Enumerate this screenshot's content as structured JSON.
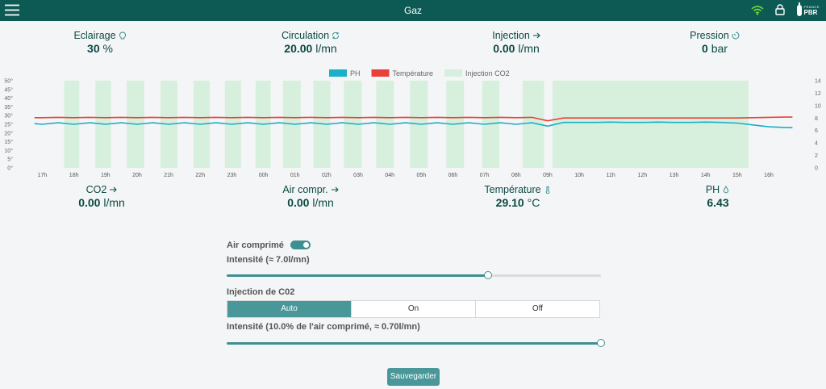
{
  "header": {
    "title": "Gaz",
    "brand": [
      "FRANCE",
      "PBR"
    ]
  },
  "metrics_top": [
    {
      "label": "Eclairage",
      "value": "30",
      "unit": "%"
    },
    {
      "label": "Circulation",
      "value": "20.00",
      "unit": "l/mn"
    },
    {
      "label": "Injection",
      "value": "0.00",
      "unit": "l/mn"
    },
    {
      "label": "Pression",
      "value": "0",
      "unit": "bar"
    }
  ],
  "chart_data": {
    "type": "line",
    "x": [
      -0.25,
      0,
      0.5,
      1,
      1.5,
      2,
      2.5,
      3,
      3.5,
      4,
      4.5,
      5,
      5.5,
      6,
      6.5,
      7,
      7.5,
      8,
      8.5,
      9,
      9.5,
      10,
      10.5,
      11,
      11.5,
      12,
      12.5,
      13,
      13.5,
      14,
      14.5,
      15,
      15.5,
      16,
      16.5,
      17,
      17.5,
      18,
      18.5,
      19,
      19.5,
      20,
      20.5,
      21,
      21.5,
      22,
      22.5,
      23,
      23.5,
      23.75
    ],
    "xlim": [
      -0.6,
      24.2
    ],
    "xticks": [
      {
        "value": 0,
        "label": "17h"
      },
      {
        "value": 1,
        "label": "18h"
      },
      {
        "value": 2,
        "label": "19h"
      },
      {
        "value": 3,
        "label": "20h"
      },
      {
        "value": 4,
        "label": "21h"
      },
      {
        "value": 5,
        "label": "22h"
      },
      {
        "value": 6,
        "label": "23h"
      },
      {
        "value": 7,
        "label": "00h"
      },
      {
        "value": 8,
        "label": "01h"
      },
      {
        "value": 9,
        "label": "02h"
      },
      {
        "value": 10,
        "label": "03h"
      },
      {
        "value": 11,
        "label": "04h"
      },
      {
        "value": 12,
        "label": "05h"
      },
      {
        "value": 13,
        "label": "06h"
      },
      {
        "value": 14,
        "label": "07h"
      },
      {
        "value": 15,
        "label": "08h"
      },
      {
        "value": 16,
        "label": "09h"
      },
      {
        "value": 17,
        "label": "10h"
      },
      {
        "value": 18,
        "label": "11h"
      },
      {
        "value": 19,
        "label": "12h"
      },
      {
        "value": 20,
        "label": "13h"
      },
      {
        "value": 21,
        "label": "14h"
      },
      {
        "value": 22,
        "label": "15h"
      },
      {
        "value": 23,
        "label": "16h"
      }
    ],
    "ylim": [
      0,
      50
    ],
    "yticks": [
      {
        "value": 0,
        "label": "0°"
      },
      {
        "value": 5,
        "label": "5°"
      },
      {
        "value": 10,
        "label": "10°"
      },
      {
        "value": 15,
        "label": "15°"
      },
      {
        "value": 20,
        "label": "20°"
      },
      {
        "value": 25,
        "label": "25°"
      },
      {
        "value": 30,
        "label": "30°"
      },
      {
        "value": 35,
        "label": "35°"
      },
      {
        "value": 40,
        "label": "40°"
      },
      {
        "value": 45,
        "label": "45°"
      },
      {
        "value": 50,
        "label": "50°"
      }
    ],
    "y2lim": [
      0,
      14
    ],
    "y2ticks": [
      0,
      2,
      4,
      6,
      8,
      10,
      12,
      14
    ],
    "grid": false,
    "legend": "top",
    "series": [
      {
        "name": "PH",
        "color": "#1ab0c8",
        "axis": "y2",
        "values": [
          7.1,
          7.0,
          7.25,
          7.0,
          7.25,
          7.0,
          7.25,
          7.0,
          7.25,
          7.0,
          7.25,
          7.0,
          7.25,
          7.0,
          7.25,
          7.0,
          7.25,
          7.0,
          7.25,
          7.0,
          7.25,
          7.0,
          7.25,
          7.0,
          7.25,
          7.0,
          7.25,
          7.0,
          7.25,
          7.0,
          7.25,
          7.0,
          7.25,
          6.7,
          7.3,
          7.3,
          7.3,
          7.35,
          7.3,
          7.3,
          7.35,
          7.3,
          7.3,
          7.35,
          7.3,
          7.2,
          6.9,
          6.6,
          6.5,
          6.45
        ]
      },
      {
        "name": "Température",
        "color": "#e8413a",
        "values": [
          28.8,
          28.8,
          29.0,
          28.8,
          29.0,
          28.8,
          29.0,
          28.8,
          29.0,
          28.8,
          29.0,
          28.8,
          29.0,
          28.8,
          29.0,
          28.8,
          29.0,
          28.8,
          29.0,
          28.8,
          29.0,
          28.8,
          29.0,
          28.8,
          29.0,
          28.8,
          29.0,
          28.8,
          29.0,
          28.8,
          29.0,
          28.8,
          29.0,
          27.0,
          28.6,
          28.6,
          28.6,
          28.6,
          28.6,
          28.6,
          28.6,
          28.6,
          28.6,
          28.6,
          28.6,
          28.6,
          28.8,
          29.0,
          29.1,
          29.1
        ]
      }
    ],
    "bands": {
      "name": "Injection CO2",
      "color": "#d7efdd",
      "periods": [
        {
          "start": 0.69,
          "end": 1.17
        },
        {
          "start": 1.68,
          "end": 2.17
        },
        {
          "start": 2.67,
          "end": 3.23
        },
        {
          "start": 3.74,
          "end": 4.28
        },
        {
          "start": 4.79,
          "end": 5.3
        },
        {
          "start": 5.78,
          "end": 6.29
        },
        {
          "start": 6.75,
          "end": 7.23
        },
        {
          "start": 7.62,
          "end": 8.18
        },
        {
          "start": 8.58,
          "end": 9.12
        },
        {
          "start": 9.55,
          "end": 10.11
        },
        {
          "start": 10.57,
          "end": 11.13
        },
        {
          "start": 11.64,
          "end": 12.2
        },
        {
          "start": 12.79,
          "end": 13.35
        },
        {
          "start": 13.93,
          "end": 14.47
        },
        {
          "start": 15.21,
          "end": 15.89
        },
        {
          "start": 16.15,
          "end": 22.36
        }
      ]
    }
  },
  "metrics_bottom": [
    {
      "label": "CO2",
      "value": "0.00",
      "unit": "l/mn"
    },
    {
      "label": "Air compr.",
      "value": "0.00",
      "unit": "l/mn"
    },
    {
      "label": "Température",
      "value": "29.10",
      "unit": "°C"
    },
    {
      "label": "PH",
      "value": "6.43",
      "unit": ""
    }
  ],
  "controls": {
    "air_label": "Air comprimé",
    "air_intensity": "Intensité (≈ 7.0l/mn)",
    "co2_label": "Injection de C02",
    "modes": [
      "Auto",
      "On",
      "Off"
    ],
    "co2_intensity": "Intensité (10.0% de l'air comprimé, ≈ 0.70l/mn)",
    "save": "Sauvegarder"
  }
}
